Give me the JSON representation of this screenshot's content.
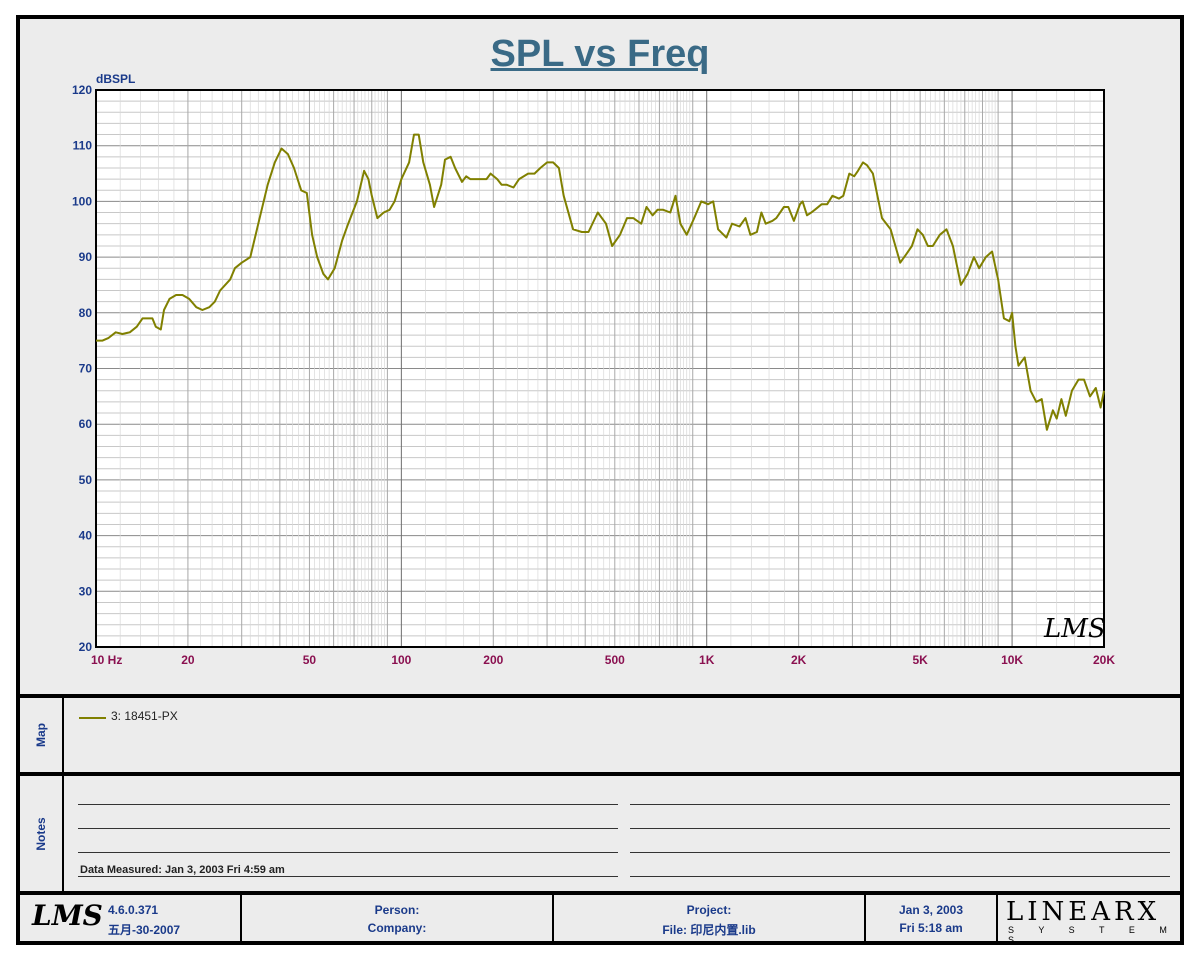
{
  "window": {
    "title": "SPL vs Freq"
  },
  "chart_data": {
    "type": "line",
    "title": "SPL vs Freq",
    "ylabel": "dBSPL",
    "xscale": "log",
    "xlim": [
      10,
      20000
    ],
    "ylim": [
      20,
      120
    ],
    "grid": true,
    "y_ticks": [
      20,
      30,
      40,
      50,
      60,
      70,
      80,
      90,
      100,
      110,
      120
    ],
    "x_tick_values": [
      10,
      20,
      50,
      100,
      200,
      500,
      1000,
      2000,
      5000,
      10000,
      20000
    ],
    "x_tick_labels": [
      "10  Hz",
      "20",
      "50",
      "100",
      "200",
      "500",
      "1K",
      "2K",
      "5K",
      "10K",
      "20K"
    ],
    "series": [
      {
        "name": "3: 18451-PX",
        "color": "#808000",
        "points": [
          [
            10,
            75
          ],
          [
            10.5,
            75
          ],
          [
            11,
            75.5
          ],
          [
            11.6,
            76.5
          ],
          [
            12.2,
            76.2
          ],
          [
            12.9,
            76.5
          ],
          [
            13.6,
            77.5
          ],
          [
            14.2,
            79
          ],
          [
            15.3,
            79
          ],
          [
            15.7,
            77.5
          ],
          [
            16.3,
            77
          ],
          [
            16.7,
            80.5
          ],
          [
            17.4,
            82.5
          ],
          [
            18.3,
            83.2
          ],
          [
            19.2,
            83.2
          ],
          [
            20.2,
            82.5
          ],
          [
            21.3,
            81
          ],
          [
            22.3,
            80.5
          ],
          [
            23.5,
            81
          ],
          [
            24.5,
            82
          ],
          [
            25.5,
            84
          ],
          [
            26.5,
            85
          ],
          [
            27.5,
            86
          ],
          [
            28.5,
            88
          ],
          [
            30,
            89
          ],
          [
            32,
            90
          ],
          [
            34,
            96
          ],
          [
            36.5,
            103
          ],
          [
            38.5,
            107
          ],
          [
            40.5,
            109.5
          ],
          [
            42.5,
            108.5
          ],
          [
            44.5,
            106
          ],
          [
            47,
            102
          ],
          [
            49,
            101.5
          ],
          [
            51,
            94
          ],
          [
            53,
            90
          ],
          [
            55.5,
            87
          ],
          [
            57.5,
            86
          ],
          [
            60.5,
            88
          ],
          [
            64,
            93
          ],
          [
            67,
            96
          ],
          [
            71.5,
            100
          ],
          [
            75.5,
            105.5
          ],
          [
            78,
            104
          ],
          [
            80,
            101
          ],
          [
            83.5,
            97
          ],
          [
            87.5,
            98
          ],
          [
            91.5,
            98.5
          ],
          [
            95,
            100
          ],
          [
            100,
            104
          ],
          [
            106,
            107
          ],
          [
            110,
            112
          ],
          [
            114,
            112
          ],
          [
            118,
            107
          ],
          [
            124,
            103
          ],
          [
            128,
            99
          ],
          [
            135,
            103
          ],
          [
            139,
            107.5
          ],
          [
            145,
            108
          ],
          [
            150,
            106
          ],
          [
            158,
            103.5
          ],
          [
            163,
            104.5
          ],
          [
            168,
            104
          ],
          [
            175,
            104
          ],
          [
            180,
            104
          ],
          [
            190,
            104
          ],
          [
            196,
            105
          ],
          [
            206,
            104
          ],
          [
            213,
            103
          ],
          [
            221,
            103
          ],
          [
            233,
            102.5
          ],
          [
            243,
            104
          ],
          [
            260,
            105
          ],
          [
            273,
            105
          ],
          [
            285,
            106
          ],
          [
            300,
            107
          ],
          [
            314,
            107
          ],
          [
            328,
            106
          ],
          [
            340,
            101
          ],
          [
            365,
            95
          ],
          [
            390,
            94.5
          ],
          [
            410,
            94.5
          ],
          [
            440,
            98
          ],
          [
            468,
            96
          ],
          [
            490,
            92
          ],
          [
            520,
            94
          ],
          [
            548,
            97
          ],
          [
            575,
            97
          ],
          [
            610,
            96
          ],
          [
            635,
            99
          ],
          [
            665,
            97.5
          ],
          [
            690,
            98.5
          ],
          [
            720,
            98.5
          ],
          [
            760,
            98
          ],
          [
            790,
            101
          ],
          [
            820,
            96
          ],
          [
            860,
            94
          ],
          [
            910,
            97
          ],
          [
            960,
            100
          ],
          [
            1010,
            99.5
          ],
          [
            1050,
            100
          ],
          [
            1090,
            95
          ],
          [
            1160,
            93.5
          ],
          [
            1210,
            96
          ],
          [
            1280,
            95.5
          ],
          [
            1340,
            97
          ],
          [
            1390,
            94
          ],
          [
            1460,
            94.5
          ],
          [
            1510,
            98
          ],
          [
            1560,
            96
          ],
          [
            1640,
            96.5
          ],
          [
            1690,
            97
          ],
          [
            1790,
            99
          ],
          [
            1850,
            99
          ],
          [
            1930,
            96.5
          ],
          [
            2020,
            99.5
          ],
          [
            2060,
            100
          ],
          [
            2130,
            97.5
          ],
          [
            2200,
            98
          ],
          [
            2260,
            98.5
          ],
          [
            2380,
            99.5
          ],
          [
            2480,
            99.5
          ],
          [
            2580,
            101
          ],
          [
            2710,
            100.5
          ],
          [
            2800,
            101
          ],
          [
            2930,
            105
          ],
          [
            3040,
            104.5
          ],
          [
            3130,
            105.5
          ],
          [
            3250,
            107
          ],
          [
            3350,
            106.5
          ],
          [
            3500,
            105
          ],
          [
            3750,
            97
          ],
          [
            4000,
            95
          ],
          [
            4150,
            92
          ],
          [
            4300,
            89
          ],
          [
            4500,
            90.5
          ],
          [
            4700,
            92
          ],
          [
            4900,
            95
          ],
          [
            5100,
            94
          ],
          [
            5300,
            92
          ],
          [
            5500,
            92
          ],
          [
            5800,
            94
          ],
          [
            6100,
            95
          ],
          [
            6400,
            92
          ],
          [
            6800,
            85
          ],
          [
            7150,
            87
          ],
          [
            7500,
            90
          ],
          [
            7800,
            88
          ],
          [
            8200,
            90
          ],
          [
            8600,
            91
          ],
          [
            9000,
            86
          ],
          [
            9400,
            79
          ],
          [
            9800,
            78.5
          ],
          [
            10000,
            80
          ],
          [
            10250,
            74
          ],
          [
            10500,
            70.5
          ],
          [
            11000,
            72
          ],
          [
            11500,
            66
          ],
          [
            12000,
            64
          ],
          [
            12500,
            64.5
          ],
          [
            13000,
            59
          ],
          [
            13600,
            62.5
          ],
          [
            14000,
            61
          ],
          [
            14500,
            64.5
          ],
          [
            15000,
            61.5
          ],
          [
            15700,
            66
          ],
          [
            16500,
            68
          ],
          [
            17200,
            68
          ],
          [
            18000,
            65
          ],
          [
            18800,
            66.5
          ],
          [
            19500,
            63
          ],
          [
            20000,
            66
          ]
        ]
      }
    ]
  },
  "map": {
    "label": "Map",
    "entry": "3: 18451-PX",
    "color": "#808000"
  },
  "notes": {
    "label": "Notes",
    "measured": "Data Measured: Jan  3, 2003  Fri  4:59 am"
  },
  "footer": {
    "version": "4.6.0.371",
    "build_date": "五月-30-2007",
    "person_label": "Person:",
    "company_label": "Company:",
    "project_label": "Project:",
    "file_label": "File: 印尼内置.lib",
    "date": "Jan  3, 2003",
    "time": "Fri  5:18 am",
    "linearx": "LINEARX",
    "systems": "S Y S T E M S"
  },
  "watermark": "LMS"
}
